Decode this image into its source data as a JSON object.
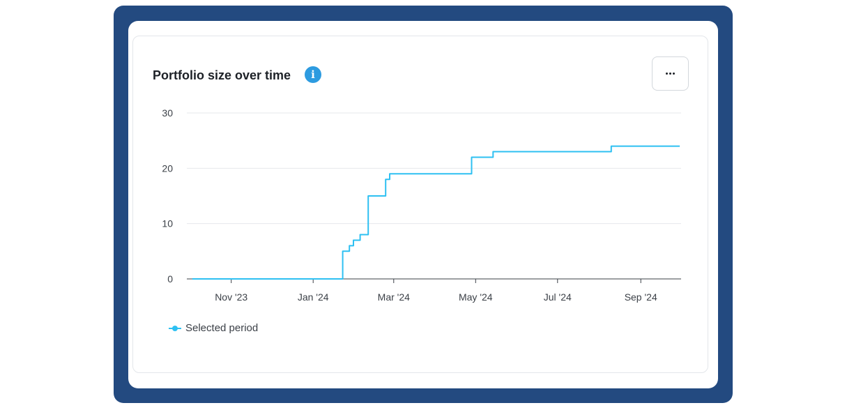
{
  "card": {
    "title": "Portfolio size over time",
    "info_icon": "info-icon",
    "more_icon": "more-horizontal-icon"
  },
  "colors": {
    "frame": "#234a80",
    "series": "#2ec0f2",
    "info": "#2d9be0"
  },
  "chart_data": {
    "type": "line",
    "interpolation": "step",
    "title": "Portfolio size over time",
    "xlabel": "",
    "ylabel": "",
    "ylim": [
      0,
      30
    ],
    "yticks": [
      0,
      10,
      20,
      30
    ],
    "xlim": [
      "2023-10-01",
      "2024-10-01"
    ],
    "xticks": [
      {
        "date": "2023-11-01",
        "label": "Nov '23"
      },
      {
        "date": "2024-01-01",
        "label": "Jan '24"
      },
      {
        "date": "2024-03-01",
        "label": "Mar '24"
      },
      {
        "date": "2024-05-01",
        "label": "May '24"
      },
      {
        "date": "2024-07-01",
        "label": "Jul '24"
      },
      {
        "date": "2024-09-01",
        "label": "Sep '24"
      }
    ],
    "grid": true,
    "legend_position": "bottom-left",
    "series": [
      {
        "name": "Selected period",
        "points": [
          [
            "2023-10-03",
            0
          ],
          [
            "2024-01-23",
            5
          ],
          [
            "2024-01-28",
            6
          ],
          [
            "2024-01-31",
            7
          ],
          [
            "2024-02-05",
            8
          ],
          [
            "2024-02-11",
            15
          ],
          [
            "2024-02-24",
            18
          ],
          [
            "2024-02-27",
            19
          ],
          [
            "2024-04-28",
            22
          ],
          [
            "2024-05-14",
            23
          ],
          [
            "2024-08-10",
            24
          ],
          [
            "2024-09-30",
            24
          ]
        ]
      }
    ]
  }
}
